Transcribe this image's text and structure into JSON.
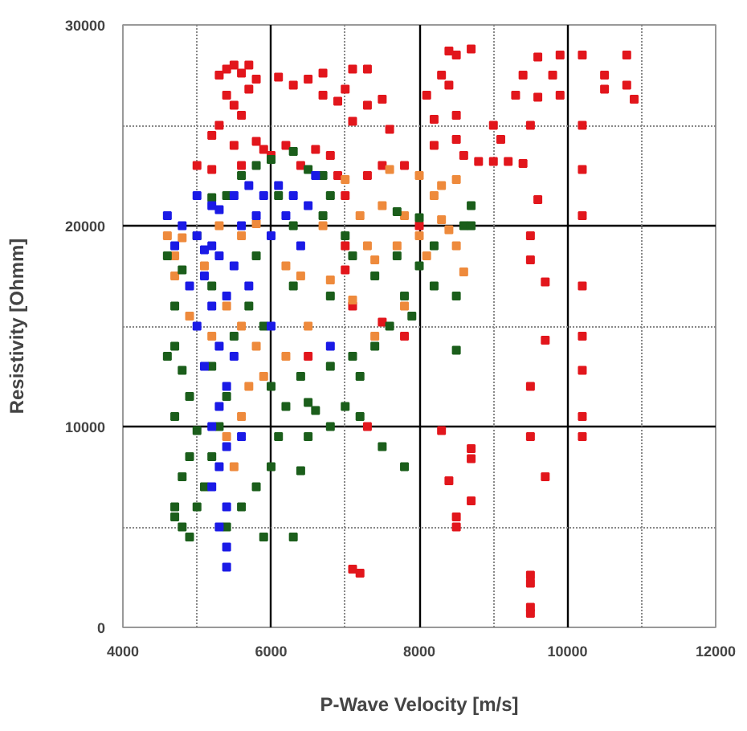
{
  "chart_data": {
    "type": "scatter",
    "xlabel": "P-Wave Velocity [m/s]",
    "ylabel": "Resistivity [Ohmm]",
    "marker": "square",
    "grid": true,
    "xlim": [
      4000,
      12000
    ],
    "ylim": [
      0,
      30000
    ],
    "xticks": [
      4000,
      {
        "value": 5000,
        "label": null
      },
      6000,
      {
        "value": 7000,
        "label": null
      },
      8000,
      {
        "value": 9000,
        "label": null
      },
      10000,
      {
        "value": 11000,
        "label": null
      },
      12000
    ],
    "yticks": [
      0,
      {
        "value": 5000,
        "label": null
      },
      10000,
      {
        "value": 15000,
        "label": null
      },
      20000,
      {
        "value": 25000,
        "label": null
      },
      30000
    ],
    "series": [
      {
        "color": "#e2161c",
        "x": [
          5300,
          5400,
          5500,
          5600,
          5700,
          5800,
          5400,
          5500,
          5600,
          5700,
          5300,
          5200,
          5500,
          5800,
          5900,
          5000,
          5200,
          5600,
          6000,
          6200,
          6400,
          6600,
          6800,
          6100,
          6300,
          6500,
          6700,
          6700,
          6900,
          7000,
          7100,
          7300,
          7500,
          7300,
          7600,
          7100,
          7500,
          6900,
          7300,
          7000,
          7800,
          8200,
          8400,
          8500,
          8400,
          8300,
          8700,
          8200,
          8100,
          8500,
          8600,
          8800,
          8500,
          9000,
          9100,
          9300,
          9400,
          9600,
          9600,
          9500,
          9200,
          9400,
          9600,
          9800,
          9900,
          9900,
          10200,
          10200,
          10200,
          10200,
          10500,
          10500,
          10800,
          10800,
          10900,
          9500,
          9700,
          9700,
          9500,
          10200,
          10200,
          10200,
          9500,
          9500,
          9500,
          9500,
          9500,
          9500,
          10200,
          10200,
          9700,
          8500,
          8500,
          8700,
          8400,
          8700,
          8700,
          8300,
          7300,
          7100,
          7200,
          7000,
          7000,
          6500,
          7100,
          7800,
          7500,
          9000,
          8000
        ],
        "values": [
          27500,
          27800,
          28000,
          27600,
          28000,
          27300,
          26500,
          26000,
          25500,
          26800,
          25000,
          24500,
          24000,
          24200,
          23800,
          23000,
          22800,
          23000,
          23500,
          24000,
          23000,
          23800,
          23500,
          27400,
          27000,
          27300,
          27600,
          26500,
          26200,
          26800,
          27800,
          27800,
          26300,
          26000,
          24800,
          25200,
          23000,
          22500,
          22500,
          21500,
          23000,
          24000,
          27000,
          28500,
          28700,
          27500,
          28800,
          25300,
          26500,
          25500,
          23500,
          23200,
          24300,
          25000,
          24300,
          26500,
          27500,
          28400,
          26400,
          25000,
          23200,
          23100,
          21300,
          27500,
          28500,
          26500,
          28500,
          25000,
          22800,
          20500,
          27500,
          26800,
          28500,
          27000,
          26300,
          19500,
          17200,
          14300,
          18300,
          17000,
          14500,
          12800,
          12000,
          9500,
          2200,
          2600,
          700,
          1000,
          10500,
          9500,
          7500,
          5000,
          5500,
          6300,
          7300,
          8400,
          8900,
          9800,
          10000,
          2900,
          2700,
          17800,
          19000,
          13500,
          16000,
          14500,
          15200,
          23200,
          20000
        ]
      },
      {
        "color": "#ee8a3c",
        "x": [
          4600,
          4800,
          4700,
          5100,
          5300,
          5600,
          5800,
          6200,
          6400,
          6700,
          7200,
          7300,
          7500,
          7700,
          7800,
          8000,
          8100,
          8300,
          8400,
          8500,
          8300,
          8600,
          7400,
          6800,
          7100,
          7400,
          7800,
          5400,
          5600,
          5800,
          5200,
          5900,
          5600,
          5400,
          6200,
          6500,
          4900,
          5500,
          5700,
          4700,
          8200,
          8500,
          8000,
          7600,
          7000
        ],
        "values": [
          19500,
          19400,
          18500,
          18000,
          20000,
          19500,
          20100,
          18000,
          17500,
          20000,
          20500,
          19000,
          21000,
          19000,
          20500,
          19500,
          18500,
          20300,
          19800,
          19000,
          22000,
          17700,
          18300,
          17300,
          16300,
          14500,
          16000,
          16000,
          15000,
          14000,
          14500,
          12500,
          10500,
          9500,
          13500,
          15000,
          15500,
          8000,
          12000,
          17500,
          21500,
          22300,
          22500,
          22800,
          22300
        ]
      },
      {
        "color": "#1b5e1b",
        "x": [
          5600,
          5800,
          6000,
          6300,
          6500,
          6700,
          5400,
          5200,
          6100,
          6300,
          6800,
          6700,
          4700,
          4600,
          4800,
          4900,
          4700,
          5000,
          4900,
          4800,
          4700,
          4700,
          4800,
          4900,
          5000,
          5100,
          5200,
          5300,
          5400,
          5200,
          5500,
          5700,
          5900,
          6000,
          6200,
          6100,
          6000,
          5800,
          5600,
          5400,
          5900,
          6300,
          6400,
          6500,
          6800,
          7000,
          7200,
          7400,
          7600,
          7800,
          7900,
          8200,
          8500,
          8600,
          8200,
          8000,
          7700,
          7400,
          7100,
          7000,
          6800,
          7700,
          8000,
          8700,
          8700,
          7100,
          6400,
          6600,
          5800,
          5200,
          4800,
          4700,
          5000,
          4600,
          7800,
          7500,
          6800,
          6300,
          8500,
          7200,
          6500
        ],
        "values": [
          22500,
          23000,
          23300,
          23700,
          22800,
          22500,
          21500,
          21400,
          21500,
          20000,
          21500,
          20500,
          14000,
          13500,
          12800,
          11500,
          10500,
          9800,
          8500,
          7500,
          6000,
          5500,
          5000,
          4500,
          6000,
          7000,
          8500,
          10000,
          11500,
          13000,
          14500,
          16000,
          15000,
          12000,
          11000,
          9500,
          8000,
          7000,
          6000,
          5000,
          4500,
          4500,
          7800,
          9500,
          10000,
          11000,
          12500,
          14000,
          15000,
          16500,
          15500,
          17000,
          16500,
          20000,
          19000,
          18000,
          18500,
          17500,
          18500,
          19500,
          16500,
          20700,
          20400,
          21000,
          20000,
          13500,
          12500,
          10800,
          18500,
          17000,
          17800,
          16000,
          19500,
          18500,
          8000,
          9000,
          13000,
          17000,
          13800,
          10500,
          11200
        ]
      },
      {
        "color": "#1a1ae6",
        "x": [
          4600,
          4800,
          5000,
          5200,
          5300,
          5100,
          4900,
          5400,
          5200,
          5000,
          5300,
          5100,
          5400,
          5300,
          5200,
          5400,
          5300,
          5200,
          5400,
          5300,
          5400,
          5400,
          5200,
          5500,
          5700,
          5900,
          6100,
          6300,
          6500,
          6600,
          6200,
          6000,
          6400,
          5800,
          5600,
          5000,
          5300,
          4700,
          5500,
          5100,
          6800,
          6000,
          5700,
          5500,
          5600
        ],
        "values": [
          20500,
          20000,
          19500,
          19000,
          18500,
          17500,
          17000,
          16500,
          16000,
          15000,
          14000,
          13000,
          12000,
          11000,
          10000,
          9000,
          8000,
          7000,
          6000,
          5000,
          4000,
          3000,
          21000,
          21500,
          22000,
          21500,
          22000,
          21500,
          21000,
          22500,
          20500,
          19500,
          19000,
          20500,
          20000,
          21500,
          20800,
          19000,
          18000,
          18800,
          14000,
          15000,
          17000,
          13500,
          9500
        ]
      }
    ]
  }
}
